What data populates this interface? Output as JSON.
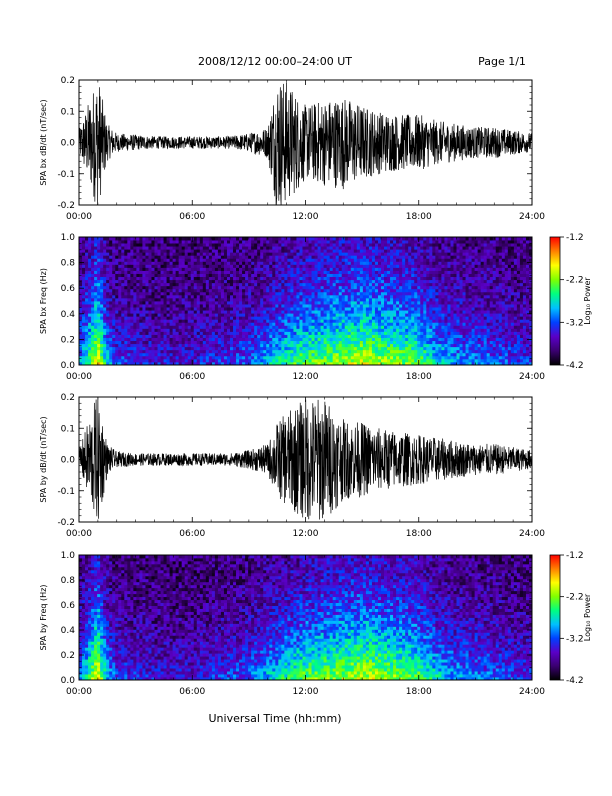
{
  "header": {
    "title": "2008/12/12  00:00–24:00 UT",
    "page": "Page 1/1"
  },
  "footer": {
    "xlabel": "Universal Time (hh:mm)"
  },
  "colors": {
    "trace": "#000000",
    "colorbar_stops": [
      "#000000",
      "#3a0070",
      "#5a00c8",
      "#0040ff",
      "#00c0ff",
      "#00ff80",
      "#80ff00",
      "#ffff00",
      "#ff8000",
      "#ff0000"
    ]
  },
  "chart_data": [
    {
      "type": "line",
      "ylabel": "SPA bx dB/dt (nT/sec)",
      "xlim": [
        0,
        24
      ],
      "ylim": [
        -0.2,
        0.2
      ],
      "x_ticks": [
        "00:00",
        "06:00",
        "12:00",
        "18:00",
        "24:00"
      ],
      "y_ticks": [
        "-0.2",
        "-0.1",
        "0.0",
        "0.1",
        "0.2"
      ],
      "series": [
        {
          "hours": [
            0,
            1,
            1.5,
            2,
            3,
            4,
            5,
            6,
            7,
            8,
            9,
            10,
            10.5,
            11,
            12,
            13,
            14,
            15,
            16,
            17,
            18,
            19,
            20,
            21,
            22,
            23,
            24
          ],
          "amplitude_envelope": [
            0.04,
            0.22,
            0.06,
            0.03,
            0.025,
            0.02,
            0.02,
            0.02,
            0.02,
            0.02,
            0.03,
            0.05,
            0.22,
            0.2,
            0.12,
            0.14,
            0.15,
            0.12,
            0.1,
            0.09,
            0.09,
            0.07,
            0.06,
            0.05,
            0.05,
            0.04,
            0.03
          ]
        }
      ]
    },
    {
      "type": "heatmap",
      "ylabel": "SPA bx Freq (Hz)",
      "xlim": [
        0,
        24
      ],
      "ylim": [
        0.0,
        1.0
      ],
      "x_ticks": [
        "00:00",
        "06:00",
        "12:00",
        "18:00",
        "24:00"
      ],
      "y_ticks": [
        "0.0",
        "0.2",
        "0.4",
        "0.6",
        "0.8",
        "1.0"
      ],
      "colorbar": {
        "label": "Log₁₀ Power",
        "range": [
          -4.2,
          -1.2
        ],
        "ticks": [
          "-1.2",
          "-2.2",
          "-3.2",
          "-4.2"
        ]
      },
      "activity_hours": [
        0,
        1,
        1.5,
        2,
        3,
        4,
        5,
        6,
        7,
        8,
        9,
        10,
        11,
        12,
        13,
        14,
        15,
        16,
        17,
        18,
        19,
        20,
        21,
        22,
        23,
        24
      ],
      "activity_level": [
        0.4,
        1.0,
        0.5,
        0.3,
        0.25,
        0.2,
        0.2,
        0.2,
        0.25,
        0.3,
        0.35,
        0.5,
        0.65,
        0.75,
        0.8,
        0.85,
        0.9,
        0.85,
        0.8,
        0.75,
        0.55,
        0.45,
        0.4,
        0.35,
        0.3,
        0.25
      ]
    },
    {
      "type": "line",
      "ylabel": "SPA by dB/dt (nT/sec)",
      "xlim": [
        0,
        24
      ],
      "ylim": [
        -0.2,
        0.2
      ],
      "x_ticks": [
        "00:00",
        "06:00",
        "12:00",
        "18:00",
        "24:00"
      ],
      "y_ticks": [
        "-0.2",
        "-0.1",
        "0.0",
        "0.1",
        "0.2"
      ],
      "series": [
        {
          "hours": [
            0,
            1,
            1.5,
            2,
            3,
            4,
            5,
            6,
            7,
            8,
            9,
            10,
            10.5,
            11,
            12,
            13,
            14,
            15,
            16,
            17,
            18,
            19,
            20,
            21,
            22,
            23,
            24
          ],
          "amplitude_envelope": [
            0.03,
            0.22,
            0.05,
            0.025,
            0.02,
            0.02,
            0.02,
            0.02,
            0.02,
            0.02,
            0.03,
            0.05,
            0.12,
            0.15,
            0.2,
            0.2,
            0.13,
            0.12,
            0.1,
            0.09,
            0.08,
            0.07,
            0.06,
            0.05,
            0.05,
            0.04,
            0.03
          ]
        }
      ]
    },
    {
      "type": "heatmap",
      "ylabel": "SPA by Freq (Hz)",
      "xlim": [
        0,
        24
      ],
      "ylim": [
        0.0,
        1.0
      ],
      "x_ticks": [
        "00:00",
        "06:00",
        "12:00",
        "18:00",
        "24:00"
      ],
      "y_ticks": [
        "0.0",
        "0.2",
        "0.4",
        "0.6",
        "0.8",
        "1.0"
      ],
      "colorbar": {
        "label": "Log₁₀ Power",
        "range": [
          -4.2,
          -1.2
        ],
        "ticks": [
          "-1.2",
          "-2.2",
          "-3.2",
          "-4.2"
        ]
      },
      "activity_hours": [
        0,
        1,
        1.5,
        2,
        3,
        4,
        5,
        6,
        7,
        8,
        9,
        10,
        11,
        12,
        13,
        14,
        15,
        16,
        17,
        18,
        19,
        20,
        21,
        22,
        23,
        24
      ],
      "activity_level": [
        0.4,
        1.0,
        0.5,
        0.3,
        0.25,
        0.2,
        0.2,
        0.2,
        0.25,
        0.3,
        0.35,
        0.5,
        0.65,
        0.75,
        0.8,
        0.85,
        0.9,
        0.85,
        0.8,
        0.75,
        0.55,
        0.45,
        0.4,
        0.35,
        0.3,
        0.25
      ]
    }
  ]
}
